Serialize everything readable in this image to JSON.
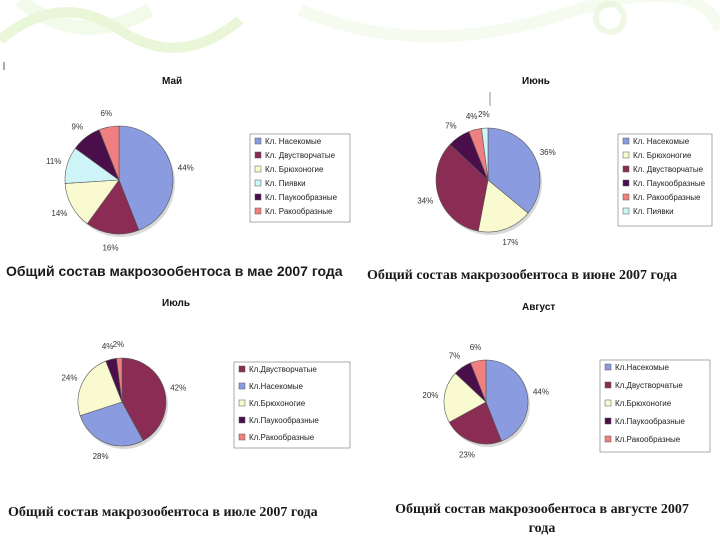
{
  "colors": {
    "insects": "#8b9be0",
    "bivalves": "#8b2c55",
    "gastropods": "#fafad0",
    "leeches": "#cdf4f6",
    "spiders": "#4a0f4a",
    "crustaceans": "#f08080",
    "ticks": "#1f5fb0"
  },
  "captions": {
    "may": "Общий состав макрозообентоса в мае 2007 года",
    "june": "Общий состав макрозообентоса в июне 2007 года",
    "july": "Общий состав макрозообентоса в июле 2007 года",
    "august": "Общий состав макрозообентоса в августе 2007 года"
  },
  "chart_data": [
    {
      "type": "pie",
      "title": "Май",
      "legend_position": "right",
      "slices": [
        {
          "name": "Кл. Насекомые",
          "value": 44,
          "label": "44%",
          "color": "#8b9be0"
        },
        {
          "name": "Кл. Двустворчатые",
          "value": 16,
          "label": "16%",
          "color": "#8b2c55"
        },
        {
          "name": "Кл. Брюхоногие",
          "value": 14,
          "label": "14%",
          "color": "#fafad0"
        },
        {
          "name": "Кл. Пиявки",
          "value": 11,
          "label": "11%",
          "color": "#cdf4f6"
        },
        {
          "name": "Кл. Паукообразные",
          "value": 9,
          "label": "9%",
          "color": "#4a0f4a"
        },
        {
          "name": "Кл. Ракообразные",
          "value": 6,
          "label": "6%",
          "color": "#f08080"
        }
      ]
    },
    {
      "type": "pie",
      "title": "Июнь",
      "legend_position": "right",
      "slices": [
        {
          "name": "Кл. Насекомые",
          "value": 36,
          "label": "36%",
          "color": "#8b9be0"
        },
        {
          "name": "Кл. Брюхоногие",
          "value": 17,
          "label": "17%",
          "color": "#fafad0"
        },
        {
          "name": "Кл. Двустворчатые",
          "value": 34,
          "label": "34%",
          "color": "#8b2c55"
        },
        {
          "name": "Кл. Паукообразные",
          "value": 7,
          "label": "7%",
          "color": "#4a0f4a"
        },
        {
          "name": "Кл. Ракообразные",
          "value": 4,
          "label": "4%",
          "color": "#f08080"
        },
        {
          "name": "Кл. Пиявки",
          "value": 2,
          "label": "2%",
          "color": "#cdf4f6"
        }
      ]
    },
    {
      "type": "pie",
      "title": "Июль",
      "legend_position": "right",
      "slices": [
        {
          "name": "Кл. Двустворчатые",
          "value": 42,
          "label": "42%",
          "color": "#8b2c55"
        },
        {
          "name": "Кл. Насекомые",
          "value": 28,
          "label": "28%",
          "color": "#8b9be0"
        },
        {
          "name": "Кл. Брюхоногие",
          "value": 24,
          "label": "24%",
          "color": "#fafad0"
        },
        {
          "name": "Кл. Паукообразные",
          "value": 4,
          "label": "4%",
          "color": "#4a0f4a"
        },
        {
          "name": "Кл. Ракообразные",
          "value": 2,
          "label": "2%",
          "color": "#f08080"
        }
      ]
    },
    {
      "type": "pie",
      "title": "Август",
      "legend_position": "right",
      "slices": [
        {
          "name": "Кл. Насекомые",
          "value": 44,
          "label": "44%",
          "color": "#8b9be0"
        },
        {
          "name": "Кл. Двустворчатые",
          "value": 23,
          "label": "23%",
          "color": "#8b2c55"
        },
        {
          "name": "Кл. Брюхоногие",
          "value": 20,
          "label": "20%",
          "color": "#fafad0"
        },
        {
          "name": "Кл. Паукообразные",
          "value": 7,
          "label": "7%",
          "color": "#4a0f4a"
        },
        {
          "name": "Кл. Ракообразные",
          "value": 6,
          "label": "6%",
          "color": "#f08080"
        }
      ]
    }
  ],
  "legends": {
    "may": [
      {
        "label": "Кл. Насекомые",
        "color": "#8b9be0"
      },
      {
        "label": "Кл. Двустворчатые",
        "color": "#8b2c55"
      },
      {
        "label": "Кл. Брюхоногие",
        "color": "#fafad0"
      },
      {
        "label": "Кл. Пиявки",
        "color": "#cdf4f6"
      },
      {
        "label": "Кл. Паукообразные",
        "color": "#4a0f4a"
      },
      {
        "label": "Кл. Ракообразные",
        "color": "#f08080"
      }
    ],
    "june": [
      {
        "label": "Кл. Насекомые",
        "color": "#8b9be0"
      },
      {
        "label": "Кл. Брюхоногие",
        "color": "#fafad0"
      },
      {
        "label": "Кл. Двустворчатые",
        "color": "#8b2c55"
      },
      {
        "label": "Кл. Паукообразные",
        "color": "#4a0f4a"
      },
      {
        "label": "Кл. Ракообразные",
        "color": "#f08080"
      },
      {
        "label": "Кл. Пиявки",
        "color": "#cdf4f6"
      }
    ],
    "july": [
      {
        "label": "Кл.Двустворчатые",
        "color": "#8b2c55"
      },
      {
        "label": "Кл.Насекомые",
        "color": "#8b9be0"
      },
      {
        "label": "Кл.Брюхоногие",
        "color": "#fafad0"
      },
      {
        "label": "Кл.Паукообразные",
        "color": "#4a0f4a"
      },
      {
        "label": "Кл.Ракообразные",
        "color": "#f08080"
      }
    ],
    "august": [
      {
        "label": "Кл.Насекомые",
        "color": "#8b9be0"
      },
      {
        "label": "Кл.Двустворчатые",
        "color": "#8b2c55"
      },
      {
        "label": "Кл.Брюхоногие",
        "color": "#fafad0"
      },
      {
        "label": "Кл.Паукообразные",
        "color": "#4a0f4a"
      },
      {
        "label": "Кл.Ракообразные",
        "color": "#f08080"
      }
    ]
  }
}
